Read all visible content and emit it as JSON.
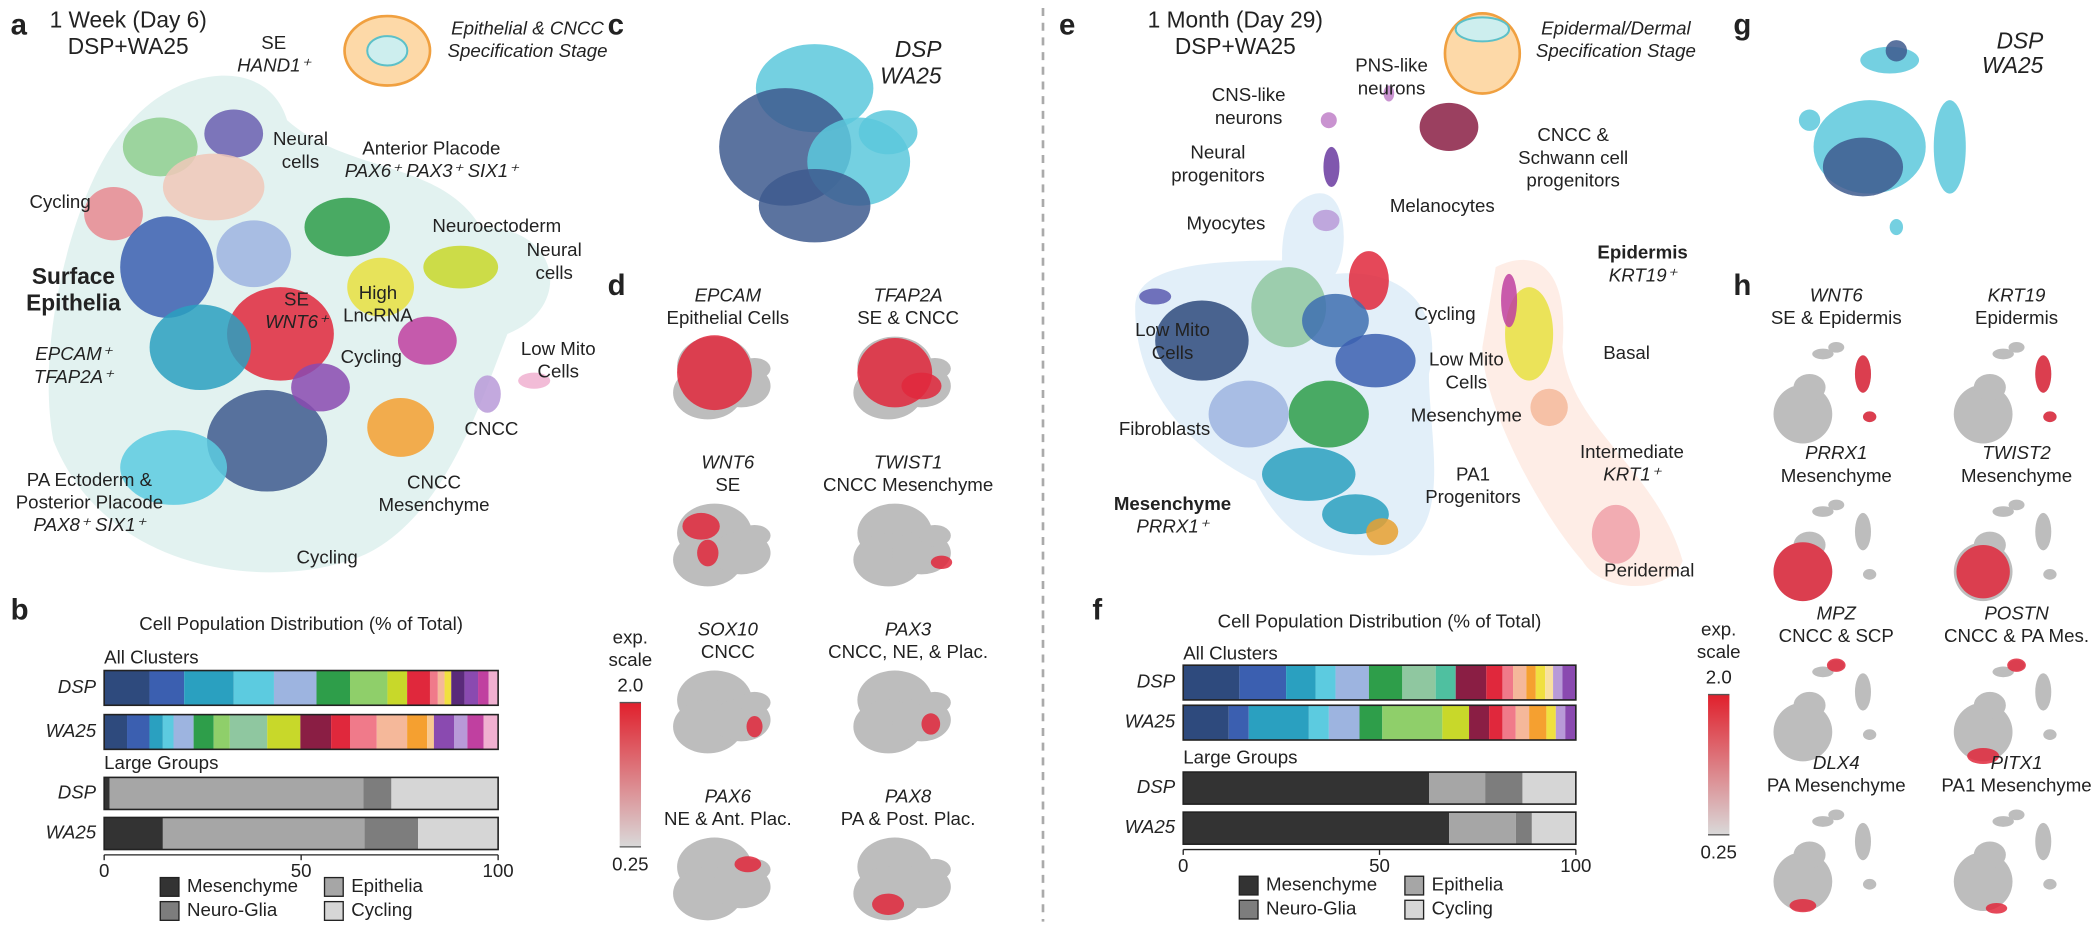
{
  "panel_letters": [
    "a",
    "b",
    "c",
    "d",
    "e",
    "f",
    "g",
    "h"
  ],
  "panel_a": {
    "title": [
      "1 Week (Day 6)",
      "DSP+WA25"
    ],
    "stage": [
      "Epithelial & CNCC",
      "Specification Stage"
    ],
    "group": [
      "Surface",
      "Epithelia",
      "EPCAM⁺",
      "TFAP2A⁺"
    ],
    "labels": [
      [
        "SE",
        "HAND1⁺"
      ],
      [
        "Neural",
        "cells"
      ],
      [
        "Anterior Placode",
        "PAX6⁺ PAX3⁺ SIX1⁺"
      ],
      [
        "Cycling"
      ],
      [
        "Neuroectoderm"
      ],
      [
        "Neural",
        "cells"
      ],
      [
        "SE",
        "WNT6⁺"
      ],
      [
        "High",
        "LncRNA"
      ],
      [
        "Cycling"
      ],
      [
        "Low Mito",
        "Cells"
      ],
      [
        "CNCC"
      ],
      [
        "CNCC",
        "Mesenchyme"
      ],
      [
        "PA Ectoderm &",
        "Posterior Placode",
        "PAX8⁺ SIX1⁺"
      ],
      [
        "Cycling"
      ]
    ]
  },
  "panel_c": {
    "legend": [
      "DSP",
      "WA25"
    ]
  },
  "panel_d": {
    "plots": [
      {
        "gene": "EPCAM",
        "label": "Epithelial Cells"
      },
      {
        "gene": "TFAP2A",
        "label": "SE & CNCC"
      },
      {
        "gene": "WNT6",
        "label": "SE"
      },
      {
        "gene": "TWIST1",
        "label": "CNCC Mesenchyme"
      },
      {
        "gene": "SOX10",
        "label": "CNCC"
      },
      {
        "gene": "PAX3",
        "label": "CNCC, NE, & Plac."
      },
      {
        "gene": "PAX6",
        "label": "NE & Ant. Plac."
      },
      {
        "gene": "PAX8",
        "label": "PA & Post. Plac."
      }
    ],
    "scale": {
      "title": [
        "exp.",
        "scale"
      ],
      "max": {
        "value": 2,
        "label": "2.0"
      },
      "min": 0.25
    }
  },
  "panel_e": {
    "title": [
      "1 Month (Day 29)",
      "DSP+WA25"
    ],
    "stage": [
      "Epidermal/Dermal",
      "Specification Stage"
    ],
    "groups": [
      [
        "Epidermis",
        "KRT19⁺"
      ],
      [
        "Mesenchyme",
        "PRRX1⁺"
      ]
    ],
    "labels": [
      [
        "PNS-like",
        "neurons"
      ],
      [
        "CNS-like",
        "neurons"
      ],
      [
        "CNCC &",
        "Schwann cell",
        "progenitors"
      ],
      [
        "Neural",
        "progenitors"
      ],
      [
        "Melanocytes"
      ],
      [
        "Myocytes"
      ],
      [
        "Cycling"
      ],
      [
        "Low Mito",
        "Cells"
      ],
      [
        "Basal"
      ],
      [
        "Low Mito",
        "Cells"
      ],
      [
        "Fibroblasts"
      ],
      [
        "Mesenchyme"
      ],
      [
        "PA1",
        "Progenitors"
      ],
      [
        "Intermediate",
        "KRT1⁺"
      ],
      [
        "Peridermal"
      ]
    ]
  },
  "panel_g": {
    "legend": [
      "DSP",
      "WA25"
    ]
  },
  "panel_h": {
    "plots": [
      {
        "gene": "WNT6",
        "label": "SE & Epidermis"
      },
      {
        "gene": "KRT19",
        "label": "Epidermis"
      },
      {
        "gene": "PRRX1",
        "label": "Mesenchyme"
      },
      {
        "gene": "TWIST2",
        "label": "Mesenchyme"
      },
      {
        "gene": "MPZ",
        "label": "CNCC & SCP"
      },
      {
        "gene": "POSTN",
        "label": "CNCC & PA Mes."
      },
      {
        "gene": "DLX4",
        "label": "PA Mesenchyme"
      },
      {
        "gene": "PITX1",
        "label": "PA1 Mesenchyme"
      }
    ],
    "scale": {
      "title": [
        "exp.",
        "scale"
      ],
      "max": {
        "value": 2,
        "label": "2.0"
      },
      "min": 0.25
    }
  },
  "chart_data": [
    {
      "type": "bar",
      "orientation": "horizontal",
      "stacked": true,
      "title": "Cell Population Distribution (% of Total)",
      "group_labels": [
        "All Clusters",
        "Large Groups"
      ],
      "xlim": [
        0,
        100
      ],
      "xticks": [
        0,
        50,
        100
      ],
      "clusters": {
        "categories": [
          "DSP",
          "WA25"
        ],
        "bars": [
          {
            "values": [
              11.5,
              8.8,
              12.6,
              10.2,
              10.8,
              8.5,
              9.5,
              5.0,
              5.8,
              2.0,
              1.7,
              1.7,
              3.4,
              3.4,
              2.7,
              2.4
            ],
            "colors": [
              "#2e4a7d",
              "#3b5fb0",
              "#2aa0c0",
              "#5ccbe0",
              "#9db4e0",
              "#2e9e4a",
              "#8fcf6a",
              "#c8d82a",
              "#e0283c",
              "#f07a8a",
              "#f5b89a",
              "#f0e040",
              "#5a2a7a",
              "#8a4ab0",
              "#c040a0",
              "#f0b0d0"
            ]
          },
          {
            "values": [
              5.8,
              5.7,
              3.4,
              2.7,
              5.1,
              5.1,
              4.1,
              9.5,
              8.4,
              7.8,
              4.8,
              6.8,
              7.7,
              5.1,
              1.7,
              5.1,
              3.4,
              4.1,
              3.7
            ],
            "colors": [
              "#2e4a7d",
              "#3b5fb0",
              "#2aa0c0",
              "#5ccbe0",
              "#9db4e0",
              "#2e9e4a",
              "#8fcf6a",
              "#8fc7a0",
              "#c8d82a",
              "#8a1e44",
              "#e0283c",
              "#f07a8a",
              "#f5b89a",
              "#f5a030",
              "#f8c890",
              "#8a4ab0",
              "#b89ad8",
              "#c040a0",
              "#f0b0d0"
            ]
          }
        ]
      },
      "groups": {
        "categories": [
          "DSP",
          "WA25"
        ],
        "series": [
          {
            "name": "Mesenchyme",
            "color": "#333333",
            "values": [
              1.4,
              14.9
            ]
          },
          {
            "name": "Epithelia",
            "color": "#a6a6a6",
            "values": [
              64.4,
              51.2
            ]
          },
          {
            "name": "Neuro-Glia",
            "color": "#7d7d7d",
            "values": [
              7.1,
              13.6
            ]
          },
          {
            "name": "Cycling",
            "color": "#d6d6d6",
            "values": [
              27.1,
              20.3
            ]
          }
        ]
      }
    },
    {
      "type": "bar",
      "orientation": "horizontal",
      "stacked": true,
      "title": "Cell Population Distribution (% of Total)",
      "group_labels": [
        "All Clusters",
        "Large Groups"
      ],
      "xlim": [
        0,
        100
      ],
      "xticks": [
        0,
        50,
        100
      ],
      "clusters": {
        "categories": [
          "DSP",
          "WA25"
        ],
        "bars": [
          {
            "values": [
              14.3,
              11.9,
              7.5,
              5.1,
              8.5,
              8.5,
              8.5,
              5.1,
              7.8,
              4.1,
              2.7,
              3.4,
              2.4,
              2.4,
              2.0,
              2.4,
              3.4
            ],
            "colors": [
              "#2e4a7d",
              "#3b5fb0",
              "#2aa0c0",
              "#5ccbe0",
              "#9db4e0",
              "#2e9e4a",
              "#8fc7a0",
              "#4fc0a0",
              "#8a1e44",
              "#e0283c",
              "#f07a8a",
              "#f5b89a",
              "#f5a030",
              "#f0e040",
              "#f8e0a0",
              "#b89ad8",
              "#8a4ab0"
            ]
          },
          {
            "values": [
              11.6,
              5.1,
              15.3,
              5.1,
              7.8,
              5.8,
              15.3,
              6.8,
              5.1,
              3.4,
              3.4,
              3.4,
              4.4,
              2.4,
              2.4,
              2.7
            ],
            "colors": [
              "#2e4a7d",
              "#3b5fb0",
              "#2aa0c0",
              "#5ccbe0",
              "#9db4e0",
              "#2e9e4a",
              "#8fcf6a",
              "#c8d82a",
              "#8a1e44",
              "#e0283c",
              "#f07a8a",
              "#f5b89a",
              "#f5a030",
              "#f0e040",
              "#b89ad8",
              "#8a4ab0"
            ]
          }
        ]
      },
      "groups": {
        "categories": [
          "DSP",
          "WA25"
        ],
        "series": [
          {
            "name": "Mesenchyme",
            "color": "#333333",
            "values": [
              62.6,
              67.7
            ]
          },
          {
            "name": "Epithelia",
            "color": "#a6a6a6",
            "values": [
              14.3,
              17.0
            ]
          },
          {
            "name": "Neuro-Glia",
            "color": "#7d7d7d",
            "values": [
              9.5,
              4.1
            ]
          },
          {
            "name": "Cycling",
            "color": "#d6d6d6",
            "values": [
              13.6,
              11.2
            ]
          }
        ]
      }
    }
  ]
}
